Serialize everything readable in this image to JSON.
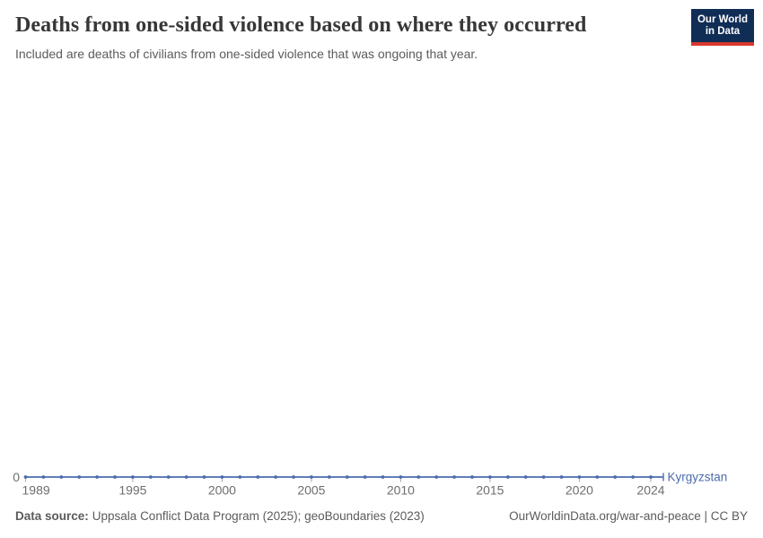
{
  "header": {
    "title": "Deaths from one-sided violence based on where they occurred",
    "subtitle": "Included are deaths of civilians from one-sided violence that was ongoing that year.",
    "logo": {
      "line1": "Our World",
      "line2": "in Data",
      "bg_color": "#102D55",
      "accent_color": "#D7382D"
    }
  },
  "chart_data": {
    "type": "line",
    "title": "Deaths from one-sided violence based on where they occurred",
    "xlabel": "",
    "ylabel": "",
    "x": [
      1989,
      1990,
      1991,
      1992,
      1993,
      1994,
      1995,
      1996,
      1997,
      1998,
      1999,
      2000,
      2001,
      2002,
      2003,
      2004,
      2005,
      2006,
      2007,
      2008,
      2009,
      2010,
      2011,
      2012,
      2013,
      2014,
      2015,
      2016,
      2017,
      2018,
      2019,
      2020,
      2021,
      2022,
      2023,
      2024
    ],
    "series": [
      {
        "name": "Kyrgyzstan",
        "color": "#4C6BAE",
        "values": [
          0,
          0,
          0,
          0,
          0,
          0,
          0,
          0,
          0,
          0,
          0,
          0,
          0,
          0,
          0,
          0,
          0,
          0,
          0,
          0,
          0,
          0,
          0,
          0,
          0,
          0,
          0,
          0,
          0,
          0,
          0,
          0,
          0,
          0,
          0,
          0
        ]
      }
    ],
    "x_ticks": [
      1989,
      1995,
      2000,
      2005,
      2010,
      2015,
      2020,
      2024
    ],
    "y_ticks": [
      0
    ],
    "xlim": [
      1989,
      2024
    ],
    "ylim": [
      0,
      0
    ],
    "grid": false,
    "legend_position": "end-of-line"
  },
  "axis": {
    "zero_label": "0",
    "label_color": "#6e6e6e",
    "tick_color": "#a3a7ad"
  },
  "entity_label": "Kyrgyzstan",
  "footer": {
    "source_label": "Data source:",
    "source_text": "Uppsala Conflict Data Program (2025); geoBoundaries (2023)",
    "right_text": "OurWorldinData.org/war-and-peace | CC BY"
  }
}
